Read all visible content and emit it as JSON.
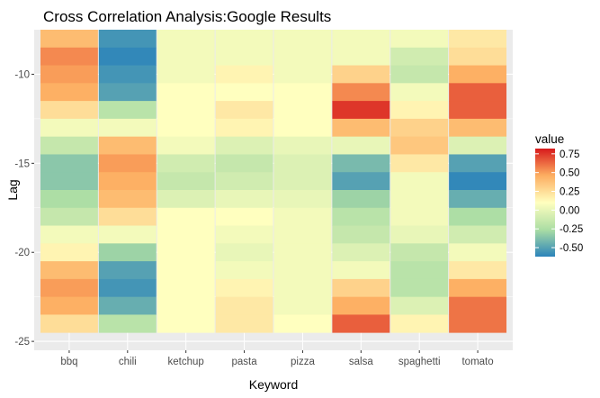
{
  "chart_data": {
    "type": "heatmap",
    "title": "Cross Correlation Analysis:Google Results",
    "xlabel": "Keyword",
    "ylabel": "Lag",
    "x_categories": [
      "bbq",
      "chili",
      "ketchup",
      "pasta",
      "pizza",
      "salsa",
      "spaghetti",
      "tomato"
    ],
    "y_ticks": [
      -10,
      -15,
      -20,
      -25
    ],
    "ylim": [
      -25.5,
      -7.5
    ],
    "lags": [
      -8,
      -9,
      -10,
      -11,
      -12,
      -13,
      -14,
      -15,
      -16,
      -17,
      -18,
      -19,
      -20,
      -21,
      -22,
      -23,
      -24
    ],
    "values": [
      [
        0.4,
        -0.55,
        0.05,
        0.05,
        0.05,
        0.05,
        0.05,
        0.2
      ],
      [
        0.55,
        -0.6,
        0.05,
        0.05,
        0.05,
        0.05,
        -0.1,
        0.25
      ],
      [
        0.5,
        -0.55,
        0.05,
        0.15,
        0.05,
        0.3,
        -0.15,
        0.45
      ],
      [
        0.45,
        -0.5,
        0.1,
        0.1,
        0.1,
        0.55,
        0.05,
        0.65
      ],
      [
        0.25,
        -0.2,
        0.1,
        0.2,
        0.1,
        0.75,
        0.15,
        0.65
      ],
      [
        0.05,
        0.05,
        0.1,
        0.15,
        0.1,
        0.4,
        0.3,
        0.4
      ],
      [
        -0.15,
        0.4,
        0.05,
        -0.05,
        0.0,
        0.0,
        0.35,
        -0.05
      ],
      [
        -0.35,
        0.5,
        -0.1,
        -0.15,
        -0.05,
        -0.4,
        0.2,
        -0.5
      ],
      [
        -0.35,
        0.45,
        -0.15,
        -0.1,
        -0.05,
        -0.5,
        0.05,
        -0.6
      ],
      [
        -0.25,
        0.4,
        -0.05,
        0.0,
        0.0,
        -0.3,
        0.05,
        -0.45
      ],
      [
        -0.15,
        0.25,
        0.1,
        0.1,
        0.05,
        -0.2,
        0.05,
        -0.25
      ],
      [
        0.05,
        0.05,
        0.1,
        0.05,
        0.05,
        -0.15,
        0.0,
        -0.1
      ],
      [
        0.15,
        -0.3,
        0.1,
        0.0,
        0.05,
        -0.05,
        -0.15,
        0.05
      ],
      [
        0.4,
        -0.5,
        0.1,
        0.05,
        0.05,
        0.05,
        -0.2,
        0.2
      ],
      [
        0.5,
        -0.55,
        0.1,
        0.15,
        0.05,
        0.3,
        -0.2,
        0.45
      ],
      [
        0.45,
        -0.45,
        0.1,
        0.2,
        0.05,
        0.45,
        -0.05,
        0.6
      ],
      [
        0.25,
        -0.2,
        0.1,
        0.2,
        0.1,
        0.65,
        0.15,
        0.6
      ]
    ],
    "legend": {
      "title": "value",
      "ticks": [
        "0.75",
        "0.50",
        "0.25",
        "0.00",
        "-0.25",
        "-0.50"
      ],
      "tick_values": [
        0.75,
        0.5,
        0.25,
        0.0,
        -0.25,
        -0.5
      ],
      "range": [
        -0.62,
        0.82
      ],
      "placement": "right"
    },
    "colors": {
      "palette": "Spectral (reversed)",
      "stops": [
        "#2B83BA",
        "#ABDDA4",
        "#FFFFBF",
        "#FDAE61",
        "#D7191C"
      ],
      "panel_background": "#EBEBEB",
      "grid": "#FFFFFF"
    }
  }
}
